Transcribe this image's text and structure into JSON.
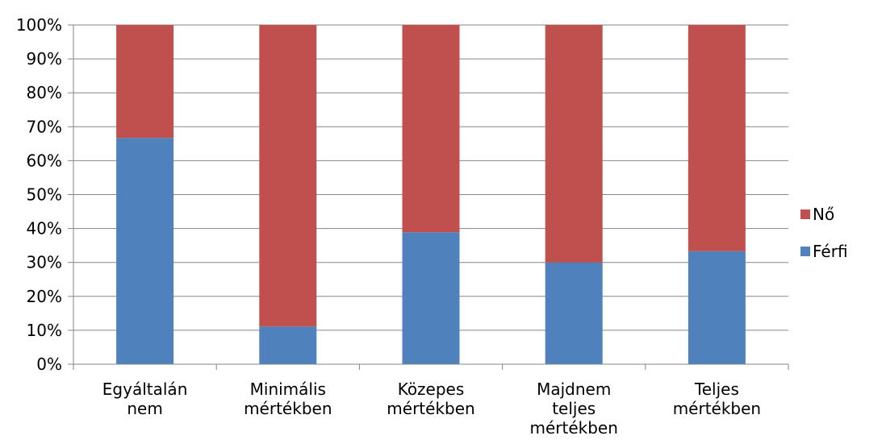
{
  "chart_data": {
    "type": "bar",
    "stacked": true,
    "percent": true,
    "categories": [
      [
        "Egyáltalán",
        "nem"
      ],
      [
        "Minimális",
        "mértékben"
      ],
      [
        "Közepes",
        "mértékben"
      ],
      [
        "Majdnem",
        "teljes",
        "mértékben"
      ],
      [
        "Teljes",
        "mértékben"
      ]
    ],
    "series": [
      {
        "name": "Férfi",
        "color": "#4F81BD",
        "values": [
          66.7,
          11.1,
          38.9,
          30.0,
          33.3
        ]
      },
      {
        "name": "Nő",
        "color": "#C0504D",
        "values": [
          33.3,
          88.9,
          61.1,
          70.0,
          66.7
        ]
      }
    ],
    "ylim": [
      0,
      100
    ],
    "yticks": [
      "0%",
      "10%",
      "20%",
      "30%",
      "40%",
      "50%",
      "60%",
      "70%",
      "80%",
      "90%",
      "100%"
    ],
    "grid": true,
    "legend_position": "right",
    "legend_order": [
      "Nő",
      "Férfi"
    ]
  }
}
